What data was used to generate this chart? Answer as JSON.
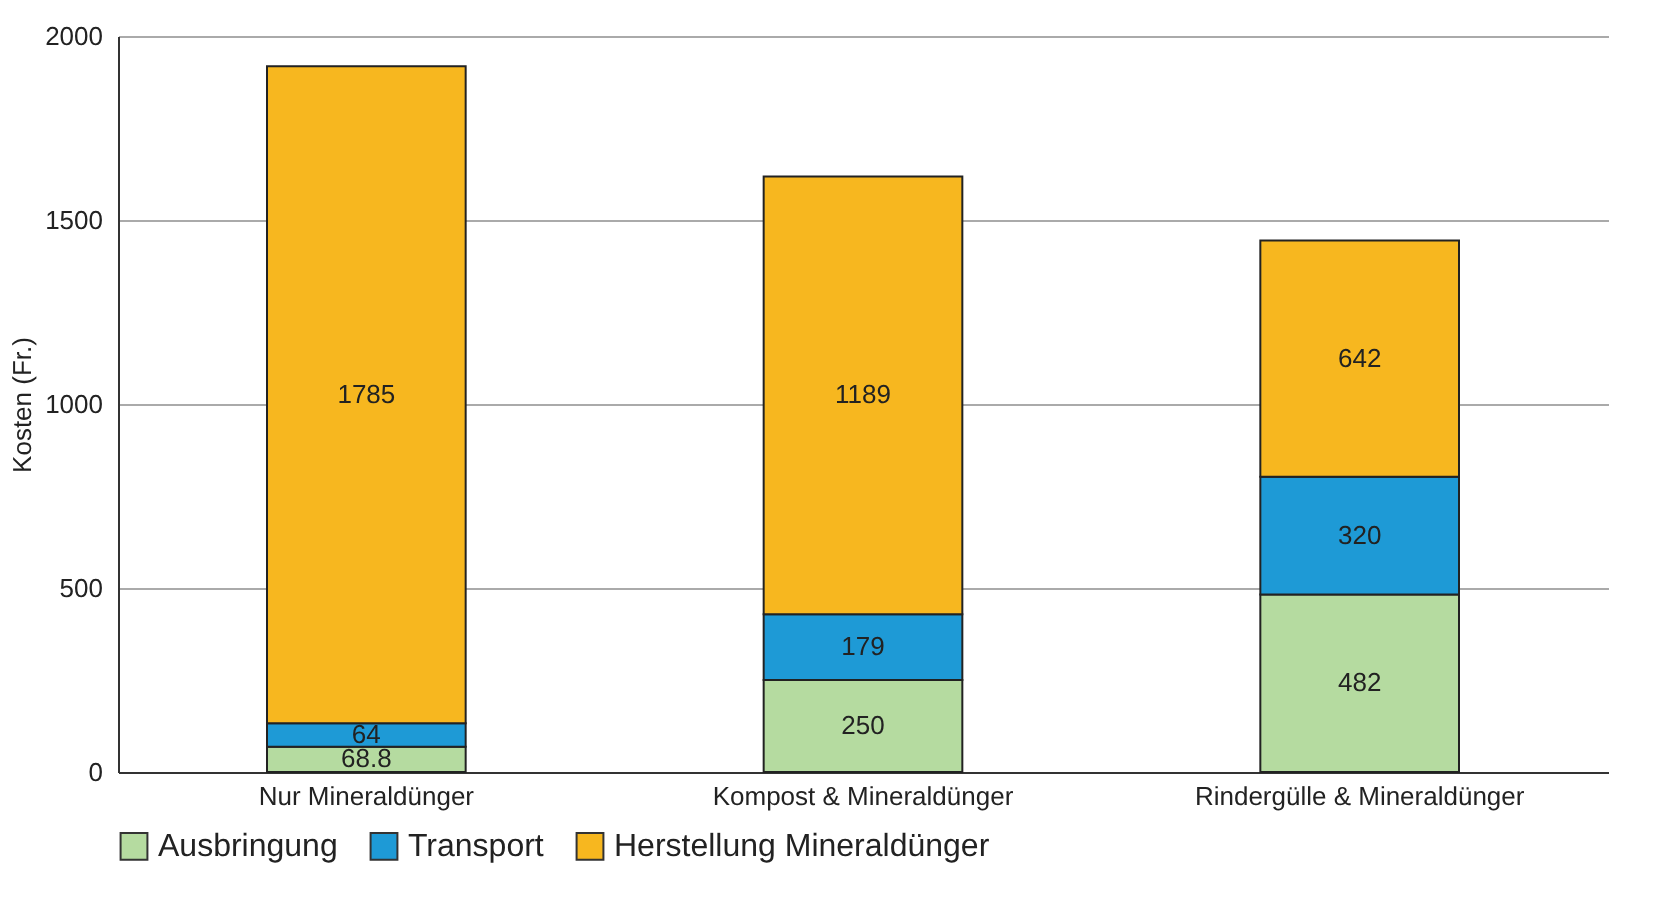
{
  "chart_data": {
    "type": "bar",
    "stacked": true,
    "ylabel": "Kosten (Fr.)",
    "categories": [
      "Nur Mineraldünger",
      "Kompost & Mineraldünger",
      "Rindergülle & Mineraldünger"
    ],
    "series": [
      {
        "name": "Ausbringung",
        "color": "#b5dba0",
        "values": [
          68.8,
          250,
          482
        ]
      },
      {
        "name": "Transport",
        "color": "#1e9ad6",
        "values": [
          64,
          179,
          320
        ]
      },
      {
        "name": "Herstellung Mineraldünger",
        "color": "#f7b71f",
        "values": [
          1785,
          1189,
          642
        ]
      }
    ],
    "ylim": [
      0,
      2000
    ],
    "yticks": [
      0,
      500,
      1000,
      1500,
      2000
    ],
    "grid": "y",
    "legend": "bottom",
    "data_labels": true
  }
}
